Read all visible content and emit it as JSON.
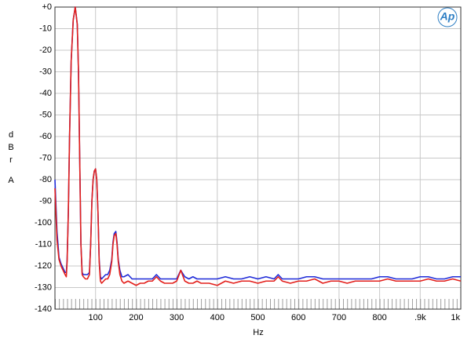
{
  "chart_data": {
    "type": "line",
    "logo": "Ap",
    "xlabel": "Hz",
    "ylabel": "dBr",
    "ylabel_unit": "A",
    "x": [
      0,
      5,
      10,
      15,
      20,
      25,
      28,
      30,
      33,
      36,
      40,
      45,
      50,
      55,
      58,
      61,
      64,
      67,
      70,
      75,
      80,
      85,
      88,
      91,
      94,
      97,
      100,
      103,
      106,
      109,
      112,
      115,
      120,
      125,
      130,
      135,
      140,
      143,
      146,
      150,
      153,
      156,
      160,
      165,
      170,
      180,
      190,
      200,
      210,
      220,
      230,
      240,
      250,
      260,
      270,
      280,
      290,
      300,
      310,
      320,
      330,
      340,
      350,
      360,
      380,
      400,
      420,
      440,
      460,
      480,
      500,
      520,
      540,
      550,
      560,
      580,
      600,
      620,
      640,
      660,
      680,
      700,
      720,
      740,
      760,
      780,
      800,
      820,
      840,
      860,
      880,
      900,
      920,
      940,
      960,
      980,
      1000
    ],
    "series": [
      {
        "color": "#1f2bd8",
        "values": [
          -80,
          -104,
          -116,
          -119,
          -121,
          -123,
          -123,
          -117,
          -95,
          -60,
          -25,
          -6,
          0,
          -8,
          -30,
          -70,
          -110,
          -123,
          -124,
          -124,
          -124,
          -123,
          -110,
          -90,
          -80,
          -76,
          -75,
          -80,
          -95,
          -117,
          -125,
          -126,
          -125,
          -124,
          -124,
          -122,
          -117,
          -109,
          -105,
          -104,
          -109,
          -117,
          -122,
          -125,
          -125,
          -124,
          -126,
          -126,
          -126,
          -126,
          -126,
          -126,
          -124,
          -126,
          -126,
          -126,
          -126,
          -126,
          -122,
          -125,
          -126,
          -125,
          -126,
          -126,
          -126,
          -126,
          -125,
          -126,
          -126,
          -125,
          -126,
          -125,
          -126,
          -124,
          -126,
          -126,
          -126,
          -125,
          -125,
          -126,
          -126,
          -126,
          -126,
          -126,
          -126,
          -126,
          -125,
          -125,
          -126,
          -126,
          -126,
          -125,
          -125,
          -126,
          -126,
          -125,
          -125
        ]
      },
      {
        "color": "#e3201c",
        "values": [
          -84,
          -108,
          -117,
          -120,
          -122,
          -124,
          -125,
          -118,
          -95,
          -60,
          -25,
          -6,
          0,
          -8,
          -30,
          -70,
          -110,
          -124,
          -125,
          -126,
          -126,
          -124,
          -110,
          -90,
          -80,
          -76,
          -75,
          -80,
          -95,
          -118,
          -127,
          -128,
          -127,
          -126,
          -126,
          -124,
          -118,
          -110,
          -106,
          -105,
          -110,
          -118,
          -124,
          -127,
          -128,
          -127,
          -128,
          -129,
          -128,
          -128,
          -127,
          -127,
          -125,
          -127,
          -128,
          -128,
          -128,
          -127,
          -122,
          -127,
          -128,
          -128,
          -127,
          -128,
          -128,
          -129,
          -127,
          -128,
          -127,
          -127,
          -128,
          -127,
          -127,
          -125,
          -127,
          -128,
          -127,
          -127,
          -126,
          -128,
          -127,
          -127,
          -128,
          -127,
          -127,
          -127,
          -127,
          -126,
          -127,
          -127,
          -127,
          -127,
          -126,
          -127,
          -127,
          -126,
          -127
        ]
      }
    ],
    "xlim": [
      0,
      1000
    ],
    "xticks": [
      100,
      200,
      300,
      400,
      500,
      600,
      700,
      800,
      {
        "value": 900,
        "label": ".9k"
      },
      {
        "value": 1000,
        "label": "1k"
      }
    ],
    "ylim": [
      -140,
      0
    ],
    "yticks": [
      {
        "value": 0,
        "label": "+0"
      },
      -10,
      -20,
      -30,
      -40,
      -50,
      -60,
      -70,
      -80,
      -90,
      -100,
      -110,
      -120,
      -130,
      -140
    ],
    "grid": true
  }
}
